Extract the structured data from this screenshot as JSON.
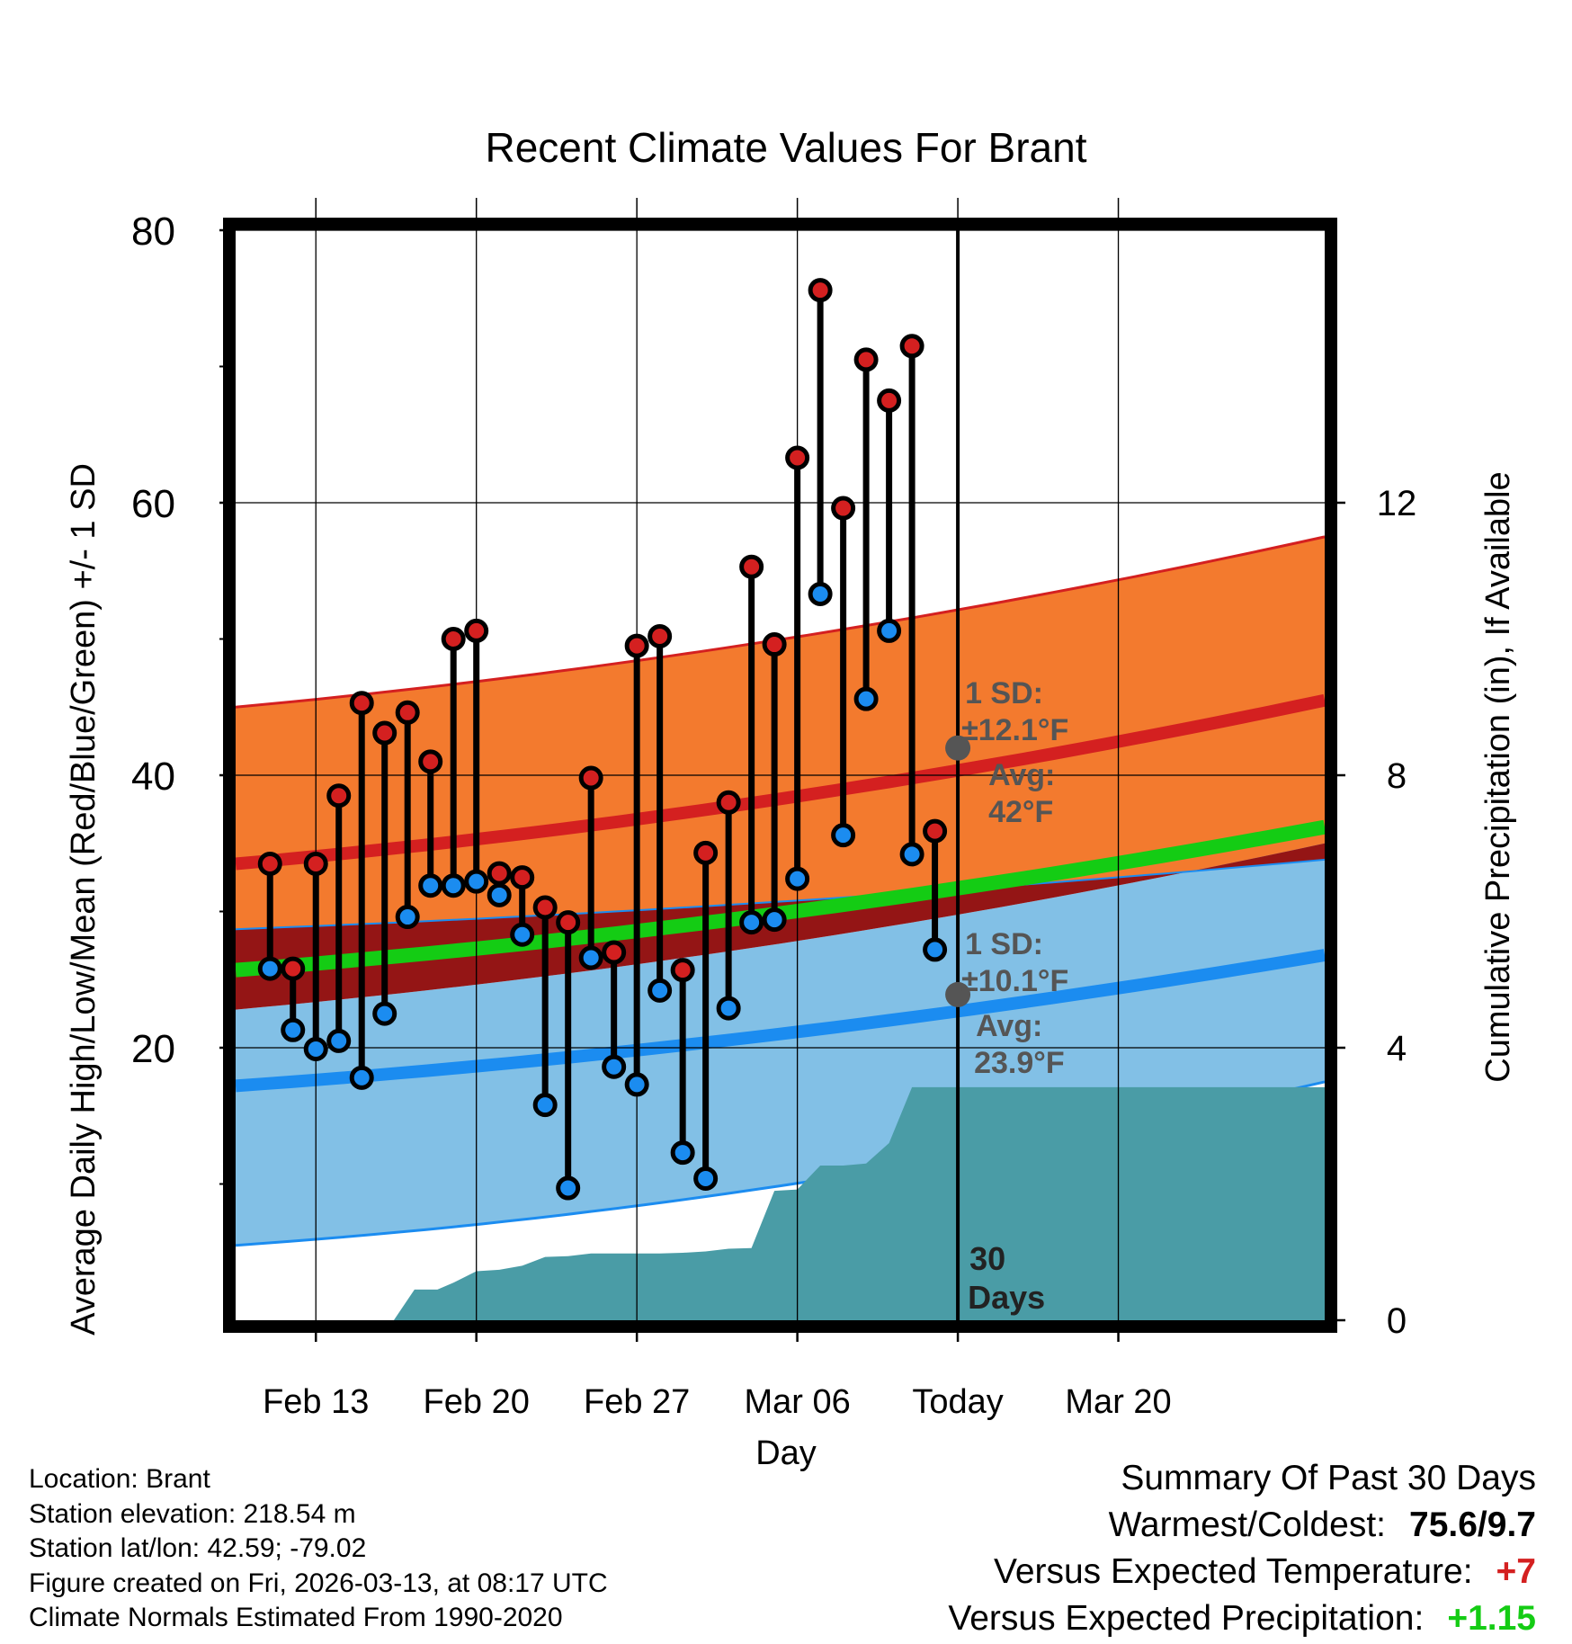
{
  "chart_data": {
    "type": "line",
    "title": "Recent Climate Values For Brant",
    "xlabel": "Day",
    "ylabel": "Average Daily High/Low/Mean (Red/Blue/Green) +/- 1 SD",
    "y2label": "Cumulative Precipitation (in), If Available",
    "xlim": [
      -3.5,
      44
    ],
    "ylim": [
      0,
      80
    ],
    "y2lim": [
      0,
      16
    ],
    "x_ticks": [
      {
        "x": 0,
        "label": "Feb 13"
      },
      {
        "x": 7,
        "label": "Feb 20"
      },
      {
        "x": 14,
        "label": "Feb 27"
      },
      {
        "x": 21,
        "label": "Mar 06"
      },
      {
        "x": 28,
        "label": "Today"
      },
      {
        "x": 35,
        "label": "Mar 20"
      }
    ],
    "y_ticks": [
      20,
      40,
      60,
      80
    ],
    "y_minor_ticks": [
      10,
      30,
      50,
      70
    ],
    "y2_ticks": [
      0,
      4,
      8,
      12
    ],
    "today_x": 28,
    "normals": {
      "x": [
        -3.5,
        44
      ],
      "high_avg": [
        33.5,
        45.5
      ],
      "high_upper": [
        45,
        57.5
      ],
      "low_avg": [
        17.2,
        26.8
      ],
      "low_lower": [
        5.5,
        17.5
      ],
      "mean_avg": [
        25.7,
        36.2
      ],
      "mean_sd_upper": [
        28.7,
        33.8
      ],
      "mean_sd_lower": [
        22.8,
        35
      ]
    },
    "daily": [
      {
        "x": -2,
        "high": 33.5,
        "low": 25.8
      },
      {
        "x": -1,
        "high": 25.8,
        "low": 21.3
      },
      {
        "x": 0,
        "high": 33.5,
        "low": 19.9
      },
      {
        "x": 1,
        "high": 38.5,
        "low": 20.5
      },
      {
        "x": 2,
        "high": 45.3,
        "low": 17.8
      },
      {
        "x": 3,
        "high": 43.1,
        "low": 22.5
      },
      {
        "x": 4,
        "high": 44.6,
        "low": 29.6
      },
      {
        "x": 5,
        "high": 41,
        "low": 31.9
      },
      {
        "x": 6,
        "high": 50,
        "low": 31.9
      },
      {
        "x": 7,
        "high": 50.6,
        "low": 32.2
      },
      {
        "x": 8,
        "high": 32.8,
        "low": 31.2
      },
      {
        "x": 9,
        "high": 32.5,
        "low": 28.3
      },
      {
        "x": 10,
        "high": 30.3,
        "low": 15.8
      },
      {
        "x": 11,
        "high": 29.2,
        "low": 9.7
      },
      {
        "x": 12,
        "high": 39.8,
        "low": 26.6
      },
      {
        "x": 13,
        "high": 27,
        "low": 18.6
      },
      {
        "x": 14,
        "high": 49.5,
        "low": 17.3
      },
      {
        "x": 15,
        "high": 50.2,
        "low": 24.2
      },
      {
        "x": 16,
        "high": 25.7,
        "low": 12.3
      },
      {
        "x": 17,
        "high": 34.3,
        "low": 10.4
      },
      {
        "x": 18,
        "high": 38,
        "low": 22.9
      },
      {
        "x": 19,
        "high": 55.3,
        "low": 29.2
      },
      {
        "x": 20,
        "high": 49.6,
        "low": 29.4
      },
      {
        "x": 21,
        "high": 63.3,
        "low": 32.4
      },
      {
        "x": 22,
        "high": 75.6,
        "low": 53.3
      },
      {
        "x": 23,
        "high": 59.6,
        "low": 35.6
      },
      {
        "x": 24,
        "high": 70.5,
        "low": 45.6
      },
      {
        "x": 25,
        "high": 67.5,
        "low": 50.6
      },
      {
        "x": 26,
        "high": 71.5,
        "low": 34.2
      },
      {
        "x": 27,
        "high": 35.9,
        "low": 27.2
      }
    ],
    "precip": {
      "x": [
        3.4,
        4.3,
        5.3,
        6,
        7,
        8,
        9,
        10,
        11,
        12,
        13,
        14,
        15,
        16,
        17,
        18,
        19,
        20,
        21,
        22,
        23,
        24,
        25,
        26,
        27,
        28,
        29,
        44
      ],
      "y": [
        0,
        0.45,
        0.45,
        0.55,
        0.72,
        0.74,
        0.8,
        0.93,
        0.94,
        0.98,
        0.98,
        0.98,
        0.98,
        0.99,
        1.01,
        1.05,
        1.06,
        1.9,
        1.92,
        2.27,
        2.27,
        2.3,
        2.6,
        3.42,
        3.42,
        3.42,
        3.42,
        3.42
      ]
    },
    "annotations": {
      "high_sd_label": "1 SD:",
      "high_sd_value": "±12.1°F",
      "high_avg_label": "Avg:",
      "high_avg_value": "42°F",
      "high_avg_point": 42,
      "low_sd_label": "1 SD:",
      "low_sd_value": "±10.1°F",
      "low_avg_label": "Avg:",
      "low_avg_value": "23.9°F",
      "low_avg_point": 23.9,
      "period_label_1": "30",
      "period_label_2": "Days"
    },
    "colors": {
      "high_band": "#f37a2e",
      "high_line": "#d42020",
      "low_band": "#82c0e6",
      "low_line": "#1b8cf0",
      "mean_band": "#941515",
      "mean_line": "#14cc14",
      "precip": "#4a9ca6",
      "high_dot": "#d42020",
      "low_dot": "#1b8cf0",
      "annotation": "#555555"
    }
  },
  "info": {
    "location": "Location: Brant",
    "elevation": "Station elevation: 218.54 m",
    "latlon": "Station lat/lon: 42.59; -79.02",
    "created": "Figure created on Fri, 2026-03-13, at 08:17 UTC",
    "normals": "Climate Normals Estimated From 1990-2020"
  },
  "summary": {
    "title": "Summary Of Past 30 Days",
    "warmest_label": "Warmest/Coldest:",
    "warmest_value": "75.6/9.7",
    "temp_label": "Versus Expected Temperature:",
    "temp_value": "+7",
    "temp_color": "#d42020",
    "precip_label": "Versus Expected Precipitation:",
    "precip_value": "+1.15",
    "precip_color": "#14cc14"
  }
}
